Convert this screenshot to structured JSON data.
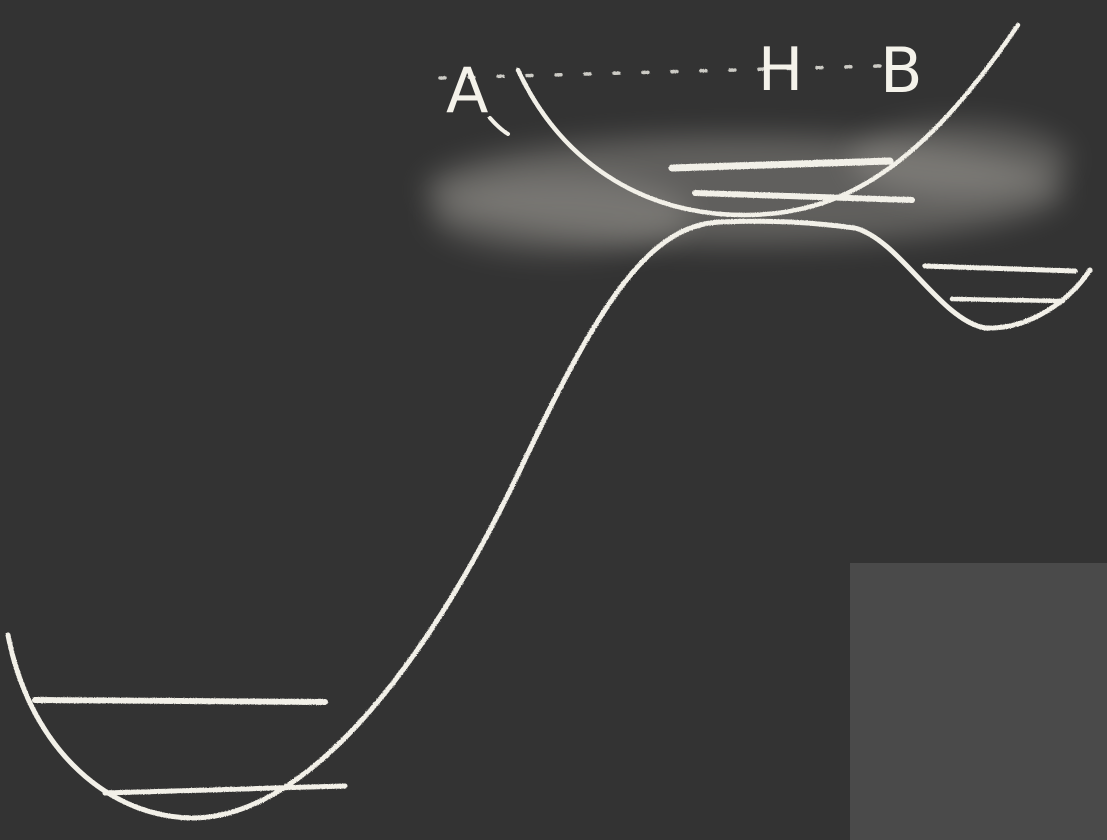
{
  "labels": {
    "left_state": "A",
    "middle_state": "H",
    "right_state": "B"
  },
  "colors": {
    "board": "#333333",
    "chalk": "#f2f0e8",
    "smudge": "#bdbab2"
  }
}
